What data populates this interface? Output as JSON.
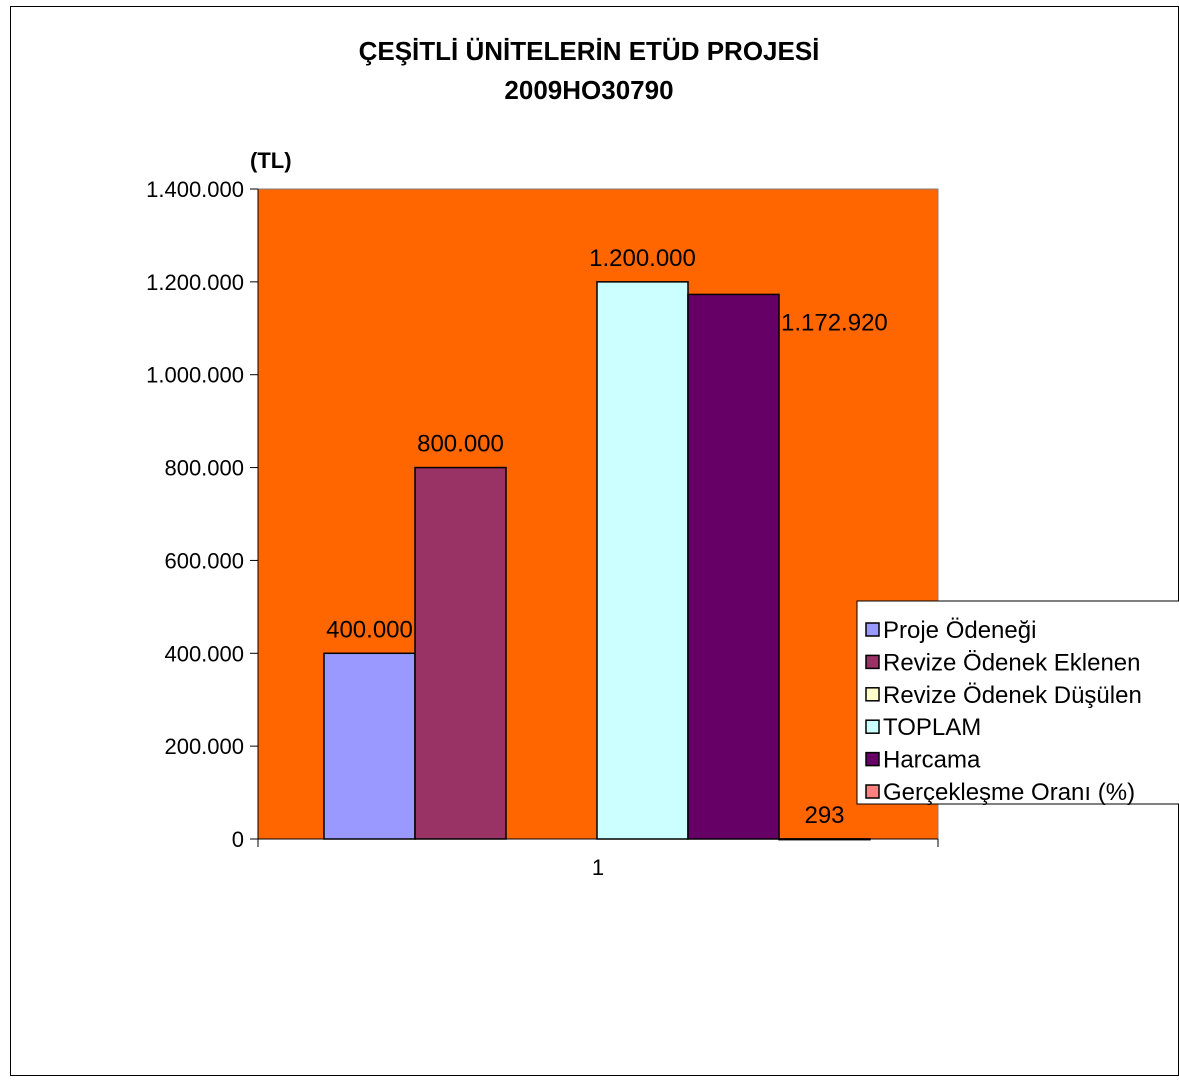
{
  "chart_data": {
    "type": "bar",
    "title": "ÇEŞİTLİ ÜNİTELERİN ETÜD PROJESİ",
    "subtitle": "2009HO30790",
    "ylabel": "(TL)",
    "xlabel": "",
    "categories": [
      "1"
    ],
    "ylim": [
      0,
      1400000
    ],
    "yticks": [
      0,
      200000,
      400000,
      600000,
      800000,
      1000000,
      1200000,
      1400000
    ],
    "ytick_labels": [
      "0",
      "200.000",
      "400.000",
      "600.000",
      "800.000",
      "1.000.000",
      "1.200.000",
      "1.400.000"
    ],
    "plot_background": "#FF6600",
    "grid": false,
    "legend_position": "right",
    "series": [
      {
        "name": "Proje Ödeneği",
        "values": [
          400000
        ],
        "label": "400.000",
        "color": "#9999FF"
      },
      {
        "name": "Revize Ödenek Eklenen",
        "values": [
          800000
        ],
        "label": "800.000",
        "color": "#993366"
      },
      {
        "name": "Revize Ödenek Düşülen",
        "values": [
          0
        ],
        "label": "",
        "color": "#FFFFCC"
      },
      {
        "name": "TOPLAM",
        "values": [
          1200000
        ],
        "label": "1.200.000",
        "color": "#CCFFFF"
      },
      {
        "name": "Harcama",
        "values": [
          1172920
        ],
        "label": "1.172.920",
        "color": "#660066"
      },
      {
        "name": "Gerçekleşme  Oranı (%)",
        "values": [
          293
        ],
        "label": "293",
        "color": "#FF8080"
      }
    ]
  }
}
